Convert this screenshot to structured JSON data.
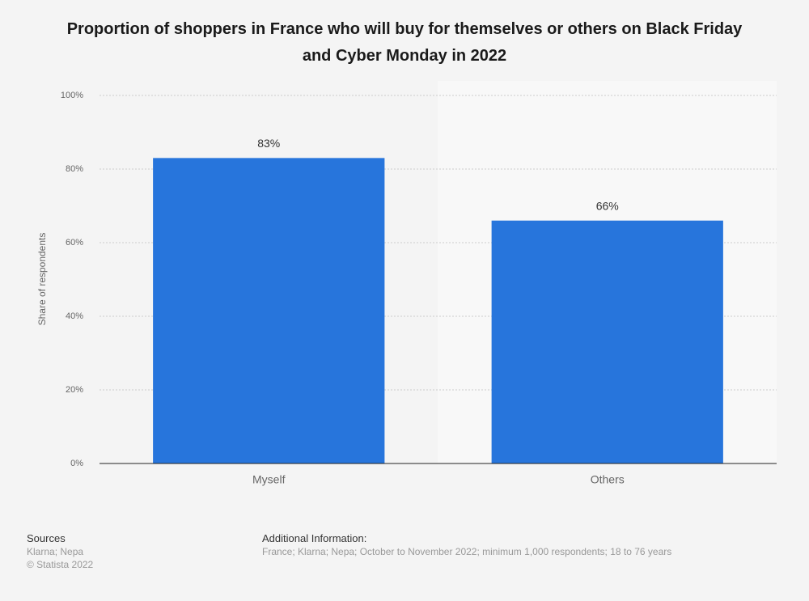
{
  "chart_data": {
    "type": "bar",
    "title": "Proportion of shoppers in France who will buy for themselves or others on Black Friday and Cyber Monday in 2022",
    "y_label": "Share of respondents",
    "categories": [
      "Myself",
      "Others"
    ],
    "values": [
      83,
      66
    ],
    "value_labels": [
      "83%",
      "66%"
    ],
    "color": "#2775dc",
    "ylim": [
      0,
      100
    ],
    "yticks": [
      {
        "value": 0,
        "label": "0%"
      },
      {
        "value": 20,
        "label": "20%"
      },
      {
        "value": 40,
        "label": "40%"
      },
      {
        "value": 60,
        "label": "60%"
      },
      {
        "value": 80,
        "label": "80%"
      },
      {
        "value": 100,
        "label": "100%"
      }
    ],
    "grid": true
  },
  "footer": {
    "sources_title": "Sources",
    "sources": [
      "Klarna; Nepa",
      "© Statista 2022"
    ],
    "info_title": "Additional Information:",
    "info": "France; Klarna; Nepa; October to November 2022; minimum 1,000 respondents; 18 to 76 years"
  }
}
